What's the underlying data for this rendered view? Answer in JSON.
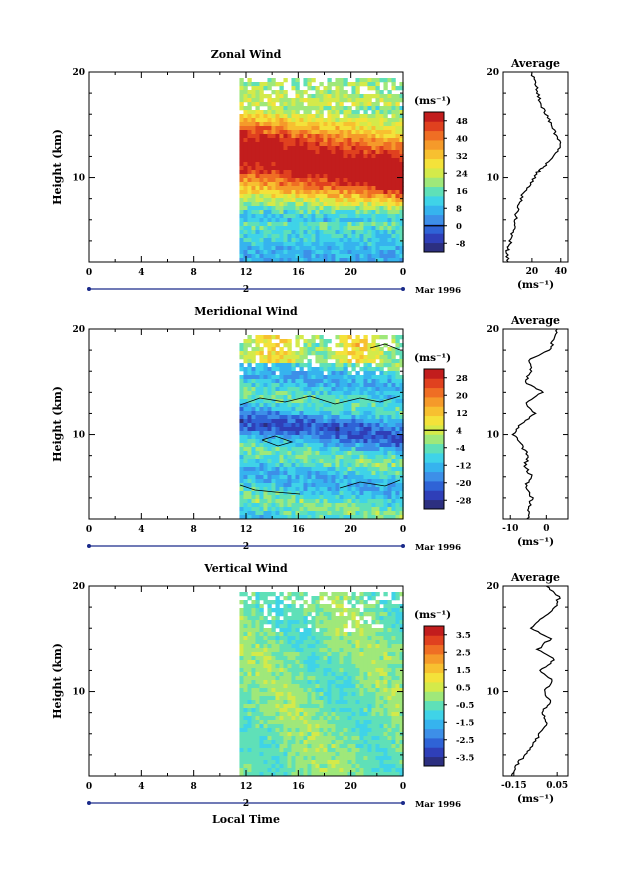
{
  "chart_data": [
    {
      "type": "heatmap",
      "title": "Zonal Wind",
      "ylabel": "Height (km)",
      "ylim": [
        2,
        20
      ],
      "x_ticks": [
        "0",
        "4",
        "8",
        "12",
        "16",
        "20",
        "0"
      ],
      "y_ticks": [
        "10",
        "20"
      ],
      "day_label": "2",
      "date_label": "Mar 1996",
      "data_start_hour": 11.5,
      "colorbar": {
        "unit": "(ms⁻¹)",
        "labels": [
          "48",
          "40",
          "32",
          "24",
          "16",
          "8",
          "0",
          "-8"
        ],
        "zero_label": "0",
        "vmin": -12,
        "vmax": 52
      },
      "average_panel": {
        "title": "Average",
        "x_ticks": [
          "20",
          "40"
        ],
        "xlim": [
          0,
          45
        ],
        "y_ticks": [
          "10",
          "20"
        ],
        "unit": "(ms⁻¹)",
        "profile": [
          [
            3,
            2.0
          ],
          [
            2.5,
            3
          ],
          [
            4,
            3.5
          ],
          [
            6,
            4.5
          ],
          [
            8,
            5.5
          ],
          [
            9,
            6.5
          ],
          [
            11,
            7.5
          ],
          [
            14,
            8.5
          ],
          [
            19,
            9.5
          ],
          [
            24,
            10.5
          ],
          [
            28,
            11
          ],
          [
            34,
            12
          ],
          [
            40,
            13
          ],
          [
            37,
            14
          ],
          [
            33,
            15
          ],
          [
            30,
            16
          ],
          [
            26,
            17
          ],
          [
            24,
            18
          ],
          [
            22,
            19
          ],
          [
            20,
            20
          ]
        ]
      }
    },
    {
      "type": "heatmap",
      "title": "Meridional Wind",
      "ylabel": "Height (km)",
      "ylim": [
        2,
        20
      ],
      "x_ticks": [
        "0",
        "4",
        "8",
        "12",
        "16",
        "20",
        "0"
      ],
      "y_ticks": [
        "10",
        "20"
      ],
      "day_label": "2",
      "date_label": "Mar 1996",
      "data_start_hour": 11.5,
      "colorbar": {
        "unit": "(ms⁻¹)",
        "labels": [
          "28",
          "20",
          "12",
          "4",
          "-4",
          "-12",
          "-20",
          "-28"
        ],
        "zero_label": "4",
        "vmin": -32,
        "vmax": 32
      },
      "average_panel": {
        "title": "Average",
        "x_ticks": [
          "-10",
          "0"
        ],
        "xlim": [
          -12,
          6
        ],
        "y_ticks": [
          "10",
          "20"
        ],
        "unit": "(ms⁻¹)",
        "profile": [
          [
            -5,
            2.0
          ],
          [
            -5,
            3
          ],
          [
            -4,
            4
          ],
          [
            -6,
            5
          ],
          [
            -4,
            6
          ],
          [
            -6,
            7
          ],
          [
            -5,
            8
          ],
          [
            -7,
            9
          ],
          [
            -9,
            10
          ],
          [
            -7,
            11
          ],
          [
            -3,
            12
          ],
          [
            -6,
            13
          ],
          [
            -1,
            14
          ],
          [
            -6,
            15
          ],
          [
            -4,
            16
          ],
          [
            -5,
            17
          ],
          [
            1,
            18
          ],
          [
            2,
            19
          ],
          [
            3,
            20
          ]
        ]
      }
    },
    {
      "type": "heatmap",
      "title": "Vertical Wind",
      "ylabel": "Height (km)",
      "xlabel": "Local Time",
      "ylim": [
        2,
        20
      ],
      "x_ticks": [
        "0",
        "4",
        "8",
        "12",
        "16",
        "20",
        "0"
      ],
      "y_ticks": [
        "10",
        "20"
      ],
      "day_label": "2",
      "date_label": "Mar 1996",
      "data_start_hour": 11.5,
      "colorbar": {
        "unit": "(ms⁻¹)",
        "labels": [
          "3.5",
          "2.5",
          "1.5",
          "0.5",
          "-0.5",
          "-1.5",
          "-2.5",
          "-3.5"
        ],
        "zero_label": "",
        "vmin": -4,
        "vmax": 4
      },
      "average_panel": {
        "title": "Average",
        "x_ticks": [
          "-0.15",
          "0.05"
        ],
        "xlim": [
          -0.2,
          0.1
        ],
        "y_ticks": [
          "10",
          "20"
        ],
        "unit": "(ms⁻¹)",
        "profile": [
          [
            -0.16,
            2.0
          ],
          [
            -0.14,
            3
          ],
          [
            -0.1,
            4
          ],
          [
            -0.06,
            5
          ],
          [
            -0.03,
            6
          ],
          [
            0.0,
            7
          ],
          [
            -0.02,
            8
          ],
          [
            0.02,
            9
          ],
          [
            -0.01,
            10
          ],
          [
            0.03,
            11
          ],
          [
            -0.03,
            12
          ],
          [
            0.04,
            13
          ],
          [
            -0.04,
            14
          ],
          [
            0.02,
            15
          ],
          [
            -0.07,
            16
          ],
          [
            -0.02,
            17
          ],
          [
            0.04,
            18
          ],
          [
            0.06,
            19
          ],
          [
            0.0,
            20
          ]
        ]
      }
    }
  ]
}
